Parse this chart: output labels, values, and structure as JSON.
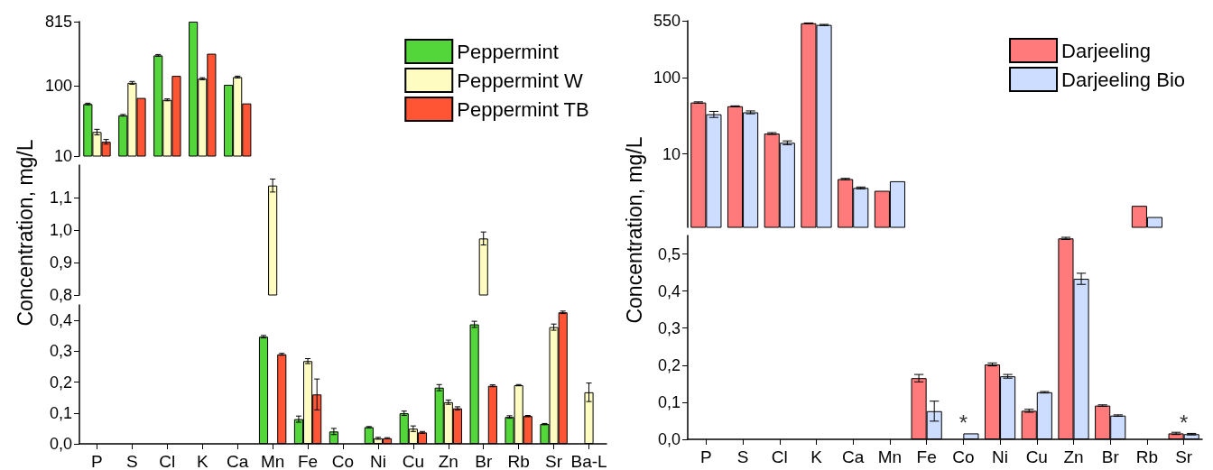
{
  "chart_data": [
    {
      "type": "bar",
      "categories": [
        "P",
        "S",
        "Cl",
        "K",
        "Ca",
        "Mn",
        "Fe",
        "Co",
        "Ni",
        "Cu",
        "Zn",
        "Br",
        "Rb",
        "Sr",
        "Ba-L"
      ],
      "log": "y",
      "ylim": [
        10,
        815
      ],
      "yticks": [
        10,
        100,
        815
      ],
      "tick_labels": "y",
      "legend": "top right",
      "series": [
        {
          "name": "Peppermint",
          "color": "#52d63a",
          "values": [
            55,
            38,
            270,
            815,
            103,
            null,
            null,
            null,
            null,
            null,
            null,
            null,
            null,
            null,
            null
          ],
          "errors": [
            1.5,
            1,
            8,
            null,
            null,
            null,
            null,
            null,
            null,
            null,
            null,
            null,
            null,
            null,
            null
          ]
        },
        {
          "name": "Peppermint W",
          "color": "#fefcc0",
          "values": [
            22,
            110,
            63,
            126,
            133,
            null,
            null,
            null,
            null,
            null,
            null,
            null,
            null,
            null,
            null
          ],
          "errors": [
            2,
            5,
            2,
            4,
            4,
            null,
            null,
            null,
            null,
            null,
            null,
            null,
            null,
            null,
            null
          ]
        },
        {
          "name": "Peppermint TB",
          "color": "#ff5535",
          "values": [
            16,
            67,
            138,
            285,
            56,
            null,
            null,
            null,
            null,
            null,
            null,
            null,
            null,
            null,
            null
          ],
          "errors": [
            1.2,
            null,
            null,
            null,
            null,
            null,
            null,
            null,
            null,
            null,
            null,
            null,
            null,
            null,
            null
          ]
        }
      ]
    },
    {
      "type": "bar",
      "categories": [
        "P",
        "S",
        "Cl",
        "K",
        "Ca",
        "Mn",
        "Fe",
        "Co",
        "Ni",
        "Cu",
        "Zn",
        "Br",
        "Rb",
        "Sr",
        "Ba-L"
      ],
      "ylabel": "Concentration, mg/L",
      "ylim": [
        0.8,
        1.2
      ],
      "yticks": [
        {
          "value": 0.8,
          "label": "0,8"
        },
        {
          "value": 0.9,
          "label": "0,9"
        },
        {
          "value": 1.0,
          "label": "1,0"
        },
        {
          "value": 1.1,
          "label": "1,1"
        }
      ],
      "tick_labels": "y",
      "series": [
        {
          "color": "#52d63a",
          "values": [
            null,
            null,
            null,
            null,
            null,
            null,
            null,
            null,
            null,
            null,
            null,
            null,
            null,
            null,
            null
          ]
        },
        {
          "color": "#fefcc0",
          "values": [
            null,
            null,
            null,
            null,
            null,
            1.137,
            null,
            null,
            null,
            null,
            null,
            0.974,
            null,
            null,
            null
          ],
          "errors": [
            null,
            null,
            null,
            null,
            null,
            0.02,
            null,
            null,
            null,
            null,
            null,
            0.02,
            null,
            null,
            null
          ]
        },
        {
          "color": "#ff5535",
          "values": [
            null,
            null,
            null,
            null,
            null,
            null,
            null,
            null,
            null,
            null,
            null,
            null,
            null,
            null,
            null
          ]
        }
      ]
    },
    {
      "type": "bar",
      "categories": [
        "P",
        "S",
        "Cl",
        "K",
        "Ca",
        "Mn",
        "Fe",
        "Co",
        "Ni",
        "Cu",
        "Zn",
        "Br",
        "Rb",
        "Sr",
        "Ba-L"
      ],
      "ylim": [
        0,
        0.45
      ],
      "yticks": [
        {
          "value": 0,
          "label": "0,0"
        },
        {
          "value": 0.1,
          "label": "0,1"
        },
        {
          "value": 0.2,
          "label": "0,2"
        },
        {
          "value": 0.3,
          "label": "0,3"
        },
        {
          "value": 0.4,
          "label": "0,4"
        }
      ],
      "series": [
        {
          "color": "#52d63a",
          "values": [
            null,
            null,
            null,
            null,
            null,
            0.347,
            0.08,
            0.04,
            0.054,
            0.099,
            0.182,
            0.387,
            0.087,
            0.064,
            null
          ],
          "errors": [
            null,
            null,
            null,
            null,
            null,
            0.004,
            0.01,
            0.01,
            0.002,
            0.007,
            0.01,
            0.01,
            0.004,
            0.002,
            null
          ]
        },
        {
          "color": "#fefcc0",
          "values": [
            null,
            null,
            null,
            null,
            null,
            null,
            0.268,
            null,
            0.018,
            0.049,
            0.135,
            null,
            0.19,
            0.378,
            0.167
          ],
          "errors": [
            null,
            null,
            null,
            null,
            null,
            null,
            0.008,
            null,
            0.003,
            0.009,
            0.007,
            null,
            0.002,
            0.01,
            0.03
          ]
        },
        {
          "color": "#ff5535",
          "values": [
            null,
            null,
            null,
            null,
            null,
            0.29,
            0.16,
            null,
            0.018,
            0.037,
            0.115,
            0.188,
            0.09,
            0.426,
            null
          ],
          "errors": [
            null,
            null,
            null,
            null,
            null,
            0.003,
            0.05,
            null,
            0.002,
            0.003,
            0.005,
            0.003,
            0.002,
            0.004,
            null
          ]
        }
      ]
    },
    {
      "type": "bar",
      "categories": [
        "P",
        "S",
        "Cl",
        "K",
        "Ca",
        "Mn",
        "Fe",
        "Co",
        "Ni",
        "Cu",
        "Zn",
        "Br",
        "Rb",
        "Sr"
      ],
      "log": "y",
      "ylim": [
        1.1,
        550
      ],
      "yticks": [
        10,
        100,
        550
      ],
      "tick_labels": "y",
      "legend": "top right",
      "series": [
        {
          "name": "Darjeeling",
          "color": "#ff7b7b",
          "values": [
            47,
            42,
            18.5,
            510,
            4.7,
            3.3,
            null,
            null,
            null,
            null,
            null,
            null,
            2.1,
            null
          ],
          "errors": [
            1,
            0.5,
            0.5,
            5,
            0.1,
            null,
            null,
            null,
            null,
            null,
            null,
            null,
            null,
            null
          ]
        },
        {
          "name": "Darjeeling Bio",
          "color": "#ccddff",
          "values": [
            33,
            35,
            14,
            485,
            3.6,
            4.4,
            null,
            null,
            null,
            null,
            null,
            null,
            1.5,
            null
          ],
          "errors": [
            3,
            1.5,
            0.8,
            8,
            0.1,
            null,
            null,
            null,
            null,
            null,
            null,
            null,
            null,
            null
          ]
        }
      ]
    },
    {
      "type": "bar",
      "categories": [
        "P",
        "S",
        "Cl",
        "K",
        "Ca",
        "Mn",
        "Fe",
        "Co",
        "Ni",
        "Cu",
        "Zn",
        "Br",
        "Rb",
        "Sr"
      ],
      "ylabel": "Concentration, mg/L",
      "ylim": [
        0,
        0.55
      ],
      "yticks": [
        {
          "value": 0,
          "label": "0,0"
        },
        {
          "value": 0.1,
          "label": "0,1"
        },
        {
          "value": 0.2,
          "label": "0,2"
        },
        {
          "value": 0.3,
          "label": "0,3"
        },
        {
          "value": 0.4,
          "label": "0,4"
        },
        {
          "value": 0.5,
          "label": "0,5"
        }
      ],
      "annotations": [
        {
          "text": "*",
          "x": "Co",
          "y": 0.016
        },
        {
          "text": "*",
          "x": "Sr",
          "y": 0.016
        }
      ],
      "series": [
        {
          "color": "#ff7b7b",
          "values": [
            null,
            null,
            null,
            null,
            null,
            null,
            0.165,
            null,
            0.202,
            0.077,
            0.542,
            0.091,
            null,
            0.016
          ],
          "errors": [
            null,
            null,
            null,
            null,
            null,
            null,
            0.01,
            null,
            0.004,
            0.004,
            0.003,
            0.002,
            null,
            0.003
          ]
        },
        {
          "color": "#ccddff",
          "values": [
            null,
            null,
            null,
            null,
            null,
            null,
            0.076,
            0.016,
            0.17,
            0.127,
            0.433,
            0.064,
            null,
            0.014
          ],
          "errors": [
            null,
            null,
            null,
            null,
            null,
            null,
            0.027,
            null,
            0.005,
            0.002,
            0.015,
            0.002,
            null,
            0.002
          ]
        }
      ]
    }
  ]
}
